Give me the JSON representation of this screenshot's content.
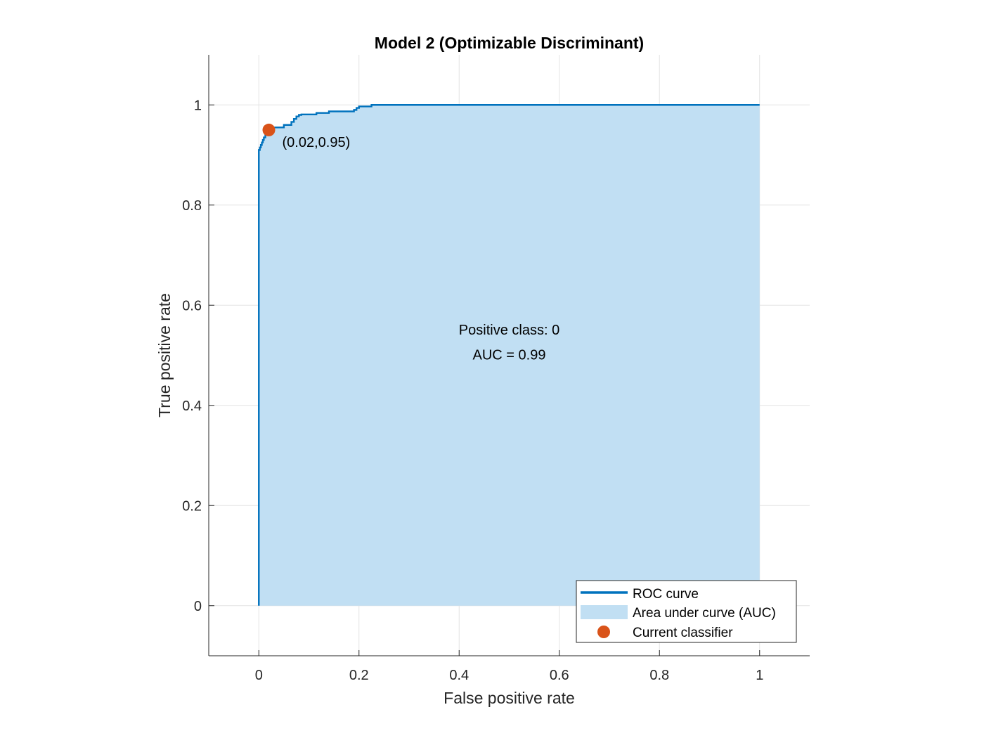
{
  "colors": {
    "roc_line": "#0072bd",
    "auc_fill": "#c1dff3",
    "current_classifier": "#d95319"
  },
  "chart_data": {
    "type": "line",
    "title": "Model 2 (Optimizable Discriminant)",
    "xlabel": "False positive rate",
    "ylabel": "True positive rate",
    "xlim": [
      -0.1,
      1.1
    ],
    "ylim": [
      -0.1,
      1.1
    ],
    "xticks": [
      0,
      0.2,
      0.4,
      0.6,
      0.8,
      1
    ],
    "yticks": [
      0,
      0.2,
      0.4,
      0.6,
      0.8,
      1
    ],
    "xtick_labels": [
      "0",
      "0.2",
      "0.4",
      "0.6",
      "0.8",
      "1"
    ],
    "ytick_labels": [
      "0",
      "0.2",
      "0.4",
      "0.6",
      "0.8",
      "1"
    ],
    "grid": true,
    "series": [
      {
        "name": "ROC curve",
        "x": [
          0,
          0,
          0.002,
          0.002,
          0.004,
          0.004,
          0.006,
          0.006,
          0.008,
          0.008,
          0.01,
          0.01,
          0.013,
          0.013,
          0.016,
          0.016,
          0.02,
          0.02,
          0.025,
          0.025,
          0.05,
          0.05,
          0.065,
          0.065,
          0.07,
          0.07,
          0.075,
          0.075,
          0.08,
          0.08,
          0.085,
          0.085,
          0.115,
          0.115,
          0.14,
          0.14,
          0.19,
          0.19,
          0.195,
          0.195,
          0.2,
          0.2,
          0.225,
          0.225,
          1
        ],
        "y": [
          0,
          0.91,
          0.91,
          0.915,
          0.915,
          0.92,
          0.92,
          0.925,
          0.925,
          0.93,
          0.93,
          0.935,
          0.935,
          0.94,
          0.94,
          0.945,
          0.945,
          0.95,
          0.95,
          0.955,
          0.955,
          0.96,
          0.96,
          0.966,
          0.966,
          0.972,
          0.972,
          0.977,
          0.977,
          0.98,
          0.98,
          0.981,
          0.981,
          0.984,
          0.984,
          0.987,
          0.987,
          0.99,
          0.99,
          0.994,
          0.994,
          0.997,
          0.997,
          1,
          1
        ]
      }
    ],
    "auc_area": {
      "name": "Area under curve (AUC)",
      "value": 0.99
    },
    "current_classifier": {
      "name": "Current classifier",
      "x": 0.02,
      "y": 0.95,
      "label": "(0.02,0.95)"
    },
    "annotations": [
      "Positive class: 0",
      "AUC = 0.99"
    ],
    "legend": {
      "position": "bottom-right",
      "entries": [
        "ROC curve",
        "Area under curve (AUC)",
        "Current classifier"
      ]
    }
  }
}
